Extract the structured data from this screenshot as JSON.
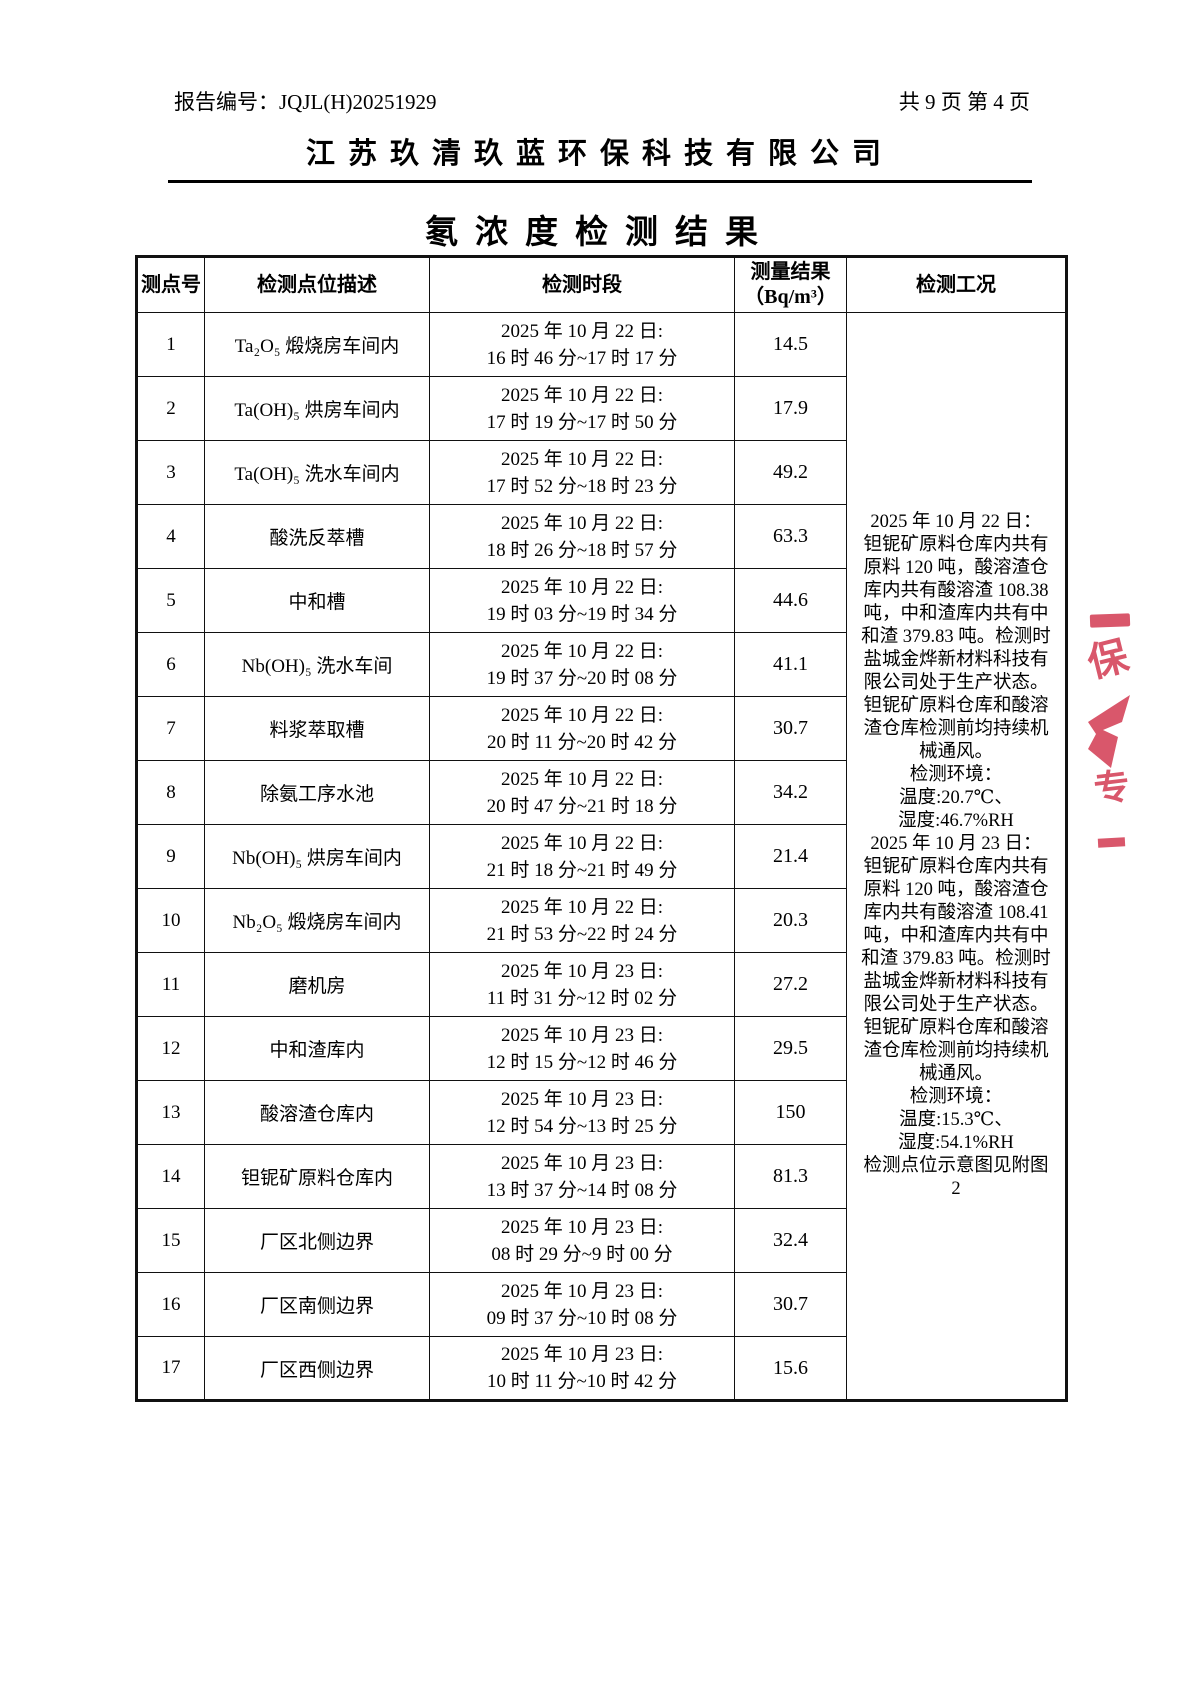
{
  "header": {
    "report_no": "报告编号：JQJL(H)20251929",
    "page_info": "共 9 页 第 4 页",
    "company": "江苏玖清玖蓝环保科技有限公司",
    "title": "氡浓度检测结果"
  },
  "table": {
    "headers": {
      "point_no": "测点号",
      "location": "检测点位描述",
      "period": "检测时段",
      "result_line1": "测量结果",
      "result_line2": "（Bq/m³）",
      "condition": "检测工况"
    },
    "rows": [
      {
        "no": "1",
        "location": "Ta₂O₅ 煅烧房车间内",
        "date": "2025 年 10 月 22 日:",
        "time": "16 时 46 分~17 时 17 分",
        "result": "14.5"
      },
      {
        "no": "2",
        "location": "Ta(OH)₅ 烘房车间内",
        "date": "2025 年 10 月 22 日:",
        "time": "17 时 19 分~17 时 50 分",
        "result": "17.9"
      },
      {
        "no": "3",
        "location": "Ta(OH)₅ 洗水车间内",
        "date": "2025 年 10 月 22 日:",
        "time": "17 时 52 分~18 时 23 分",
        "result": "49.2"
      },
      {
        "no": "4",
        "location": "酸洗反萃槽",
        "date": "2025 年 10 月 22 日:",
        "time": "18 时 26 分~18 时 57 分",
        "result": "63.3"
      },
      {
        "no": "5",
        "location": "中和槽",
        "date": "2025 年 10 月 22 日:",
        "time": "19 时 03 分~19 时 34 分",
        "result": "44.6"
      },
      {
        "no": "6",
        "location": "Nb(OH)₅ 洗水车间",
        "date": "2025 年 10 月 22 日:",
        "time": "19 时 37 分~20 时 08 分",
        "result": "41.1"
      },
      {
        "no": "7",
        "location": "料浆萃取槽",
        "date": "2025 年 10 月 22 日:",
        "time": "20 时 11 分~20 时 42 分",
        "result": "30.7"
      },
      {
        "no": "8",
        "location": "除氨工序水池",
        "date": "2025 年 10 月 22 日:",
        "time": "20 时 47 分~21 时 18 分",
        "result": "34.2"
      },
      {
        "no": "9",
        "location": "Nb(OH)₅ 烘房车间内",
        "date": "2025 年 10 月 22 日:",
        "time": "21 时 18 分~21 时 49 分",
        "result": "21.4"
      },
      {
        "no": "10",
        "location": "Nb₂O₅ 煅烧房车间内",
        "date": "2025 年 10 月 22 日:",
        "time": "21 时 53 分~22 时 24 分",
        "result": "20.3"
      },
      {
        "no": "11",
        "location": "磨机房",
        "date": "2025 年 10 月 23 日:",
        "time": "11 时 31 分~12 时 02 分",
        "result": "27.2"
      },
      {
        "no": "12",
        "location": "中和渣库内",
        "date": "2025 年 10 月 23 日:",
        "time": "12 时 15 分~12 时 46 分",
        "result": "29.5"
      },
      {
        "no": "13",
        "location": "酸溶渣仓库内",
        "date": "2025 年 10 月 23 日:",
        "time": "12 时 54 分~13 时 25 分",
        "result": "150"
      },
      {
        "no": "14",
        "location": "钽铌矿原料仓库内",
        "date": "2025 年 10 月 23 日:",
        "time": "13 时 37 分~14 时 08 分",
        "result": "81.3"
      },
      {
        "no": "15",
        "location": "厂区北侧边界",
        "date": "2025 年 10 月 23 日:",
        "time": "08 时 29 分~9 时 00 分",
        "result": "32.4"
      },
      {
        "no": "16",
        "location": "厂区南侧边界",
        "date": "2025 年 10 月 23 日:",
        "time": "09 时 37 分~10 时 08 分",
        "result": "30.7"
      },
      {
        "no": "17",
        "location": "厂区西侧边界",
        "date": "2025 年 10 月 23 日:",
        "time": "10 时 11 分~10 时 42 分",
        "result": "15.6"
      }
    ],
    "condition_lines": [
      "2025 年 10 月 22 日：",
      "钽铌矿原料仓库内共有",
      "原料 120 吨，酸溶渣仓",
      "库内共有酸溶渣 108.38",
      "吨，中和渣库内共有中",
      "和渣 379.83 吨。检测时",
      "盐城金烨新材料科技有",
      "限公司处于生产状态。",
      "钽铌矿原料仓库和酸溶",
      "渣仓库检测前均持续机",
      "械通风。",
      "检测环境：",
      "温度:20.7℃、",
      "湿度:46.7%RH",
      "2025 年 10 月 23 日：",
      "钽铌矿原料仓库内共有",
      "原料 120 吨，酸溶渣仓",
      "库内共有酸溶渣 108.41",
      "吨，中和渣库内共有中",
      "和渣 379.83 吨。检测时",
      "盐城金烨新材料科技有",
      "限公司处于生产状态。",
      "钽铌矿原料仓库和酸溶",
      "渣仓库检测前均持续机",
      "械通风。",
      "检测环境：",
      "温度:15.3℃、",
      "湿度:54.1%RH",
      "检测点位示意图见附图",
      "2"
    ]
  },
  "stamp": {
    "char_top": "保",
    "char_bottom": "专",
    "color": "#d6495f"
  }
}
